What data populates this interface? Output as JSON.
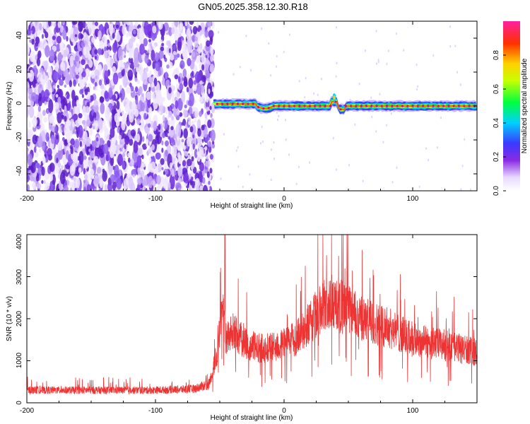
{
  "title": "GN05.2025.358.12.30.R18",
  "chart_data": [
    {
      "type": "heatmap",
      "xlabel": "Height of straight line (km)",
      "ylabel": "Frequency (Hz)",
      "xlim": [
        -200,
        150
      ],
      "ylim": [
        -50,
        50
      ],
      "xticks": [
        "-200",
        "-100",
        "0",
        "100"
      ],
      "yticks": [
        "-40",
        "-20",
        "0",
        "20",
        "40"
      ],
      "colorbar": {
        "label": "Normalized spectral amplitude",
        "range": [
          0,
          1
        ],
        "ticks": [
          "0.0",
          "0.2",
          "0.4",
          "0.6",
          "0.8"
        ],
        "colormap": "rainbow (white-purple-blue-cyan-green-yellow-orange-red)"
      },
      "features": {
        "noise_region_x": [
          -200,
          -55
        ],
        "signal_onset_x": -55,
        "signal_frequency_hz": 0,
        "signal_band_halfwidth_hz": 3
      }
    },
    {
      "type": "line",
      "xlabel": "Height of straight line (km)",
      "ylabel": "SNR (10 * v/v)",
      "xlim": [
        -200,
        150
      ],
      "ylim": [
        0,
        4000
      ],
      "xticks": [
        "-200",
        "-100",
        "0",
        "100"
      ],
      "yticks": [
        "0",
        "1000",
        "2000",
        "3000",
        "4000"
      ],
      "color": "#ee3333",
      "envelope": {
        "x": [
          -200,
          -150,
          -100,
          -70,
          -58,
          -52,
          -48,
          -45,
          -40,
          -30,
          -20,
          -10,
          0,
          10,
          20,
          30,
          40,
          50,
          60,
          80,
          100,
          120,
          150
        ],
        "y": [
          300,
          300,
          300,
          330,
          450,
          1200,
          2200,
          1500,
          1700,
          1400,
          1300,
          1300,
          1400,
          1550,
          1900,
          2300,
          2300,
          2200,
          2000,
          1800,
          1500,
          1400,
          1200
        ]
      },
      "peak": {
        "x": -46,
        "y": 4000
      }
    }
  ]
}
